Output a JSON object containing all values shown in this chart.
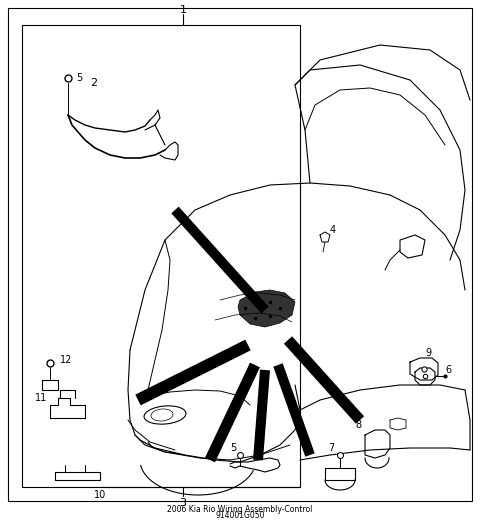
{
  "bg_color": "#ffffff",
  "line_color": "#000000",
  "fig_width": 4.8,
  "fig_height": 5.21,
  "dpi": 100,
  "title_line1": "2006 Kia Rio Wiring Assembly-Control",
  "title_line2": "914001G050"
}
